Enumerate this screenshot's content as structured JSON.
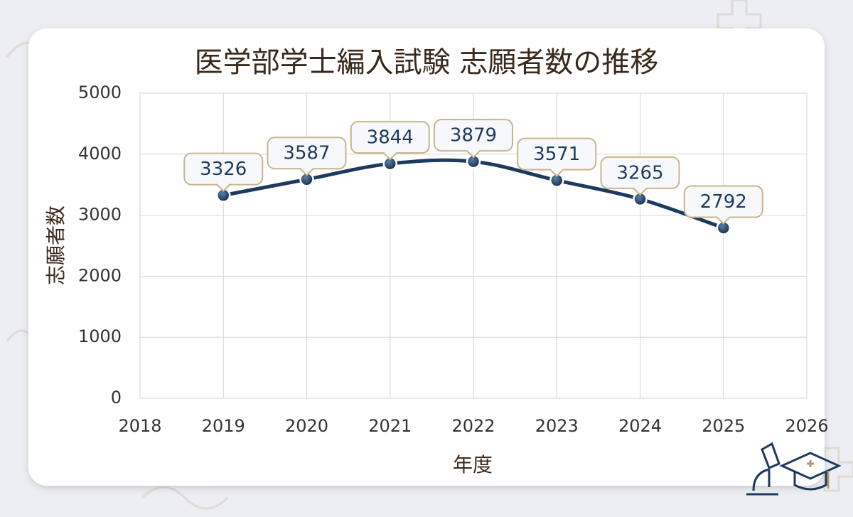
{
  "chart_data": {
    "type": "line",
    "title": "医学部学士編入試験 志願者数の推移",
    "x_label": "年度",
    "y_label": "志願者数",
    "x": [
      2019,
      2020,
      2021,
      2022,
      2023,
      2024,
      2025
    ],
    "series": [
      {
        "name": "志願者数",
        "color": "#1d3a5e",
        "values": [
          3326,
          3587,
          3844,
          3879,
          3571,
          3265,
          2792
        ]
      }
    ],
    "xlim": [
      2018,
      2026
    ],
    "xticks": [
      2018,
      2019,
      2020,
      2021,
      2022,
      2023,
      2024,
      2025,
      2026
    ],
    "ylim": [
      0,
      5000
    ],
    "yticks": [
      0,
      1000,
      2000,
      3000,
      4000,
      5000
    ],
    "grid": true,
    "data_labels": true
  }
}
